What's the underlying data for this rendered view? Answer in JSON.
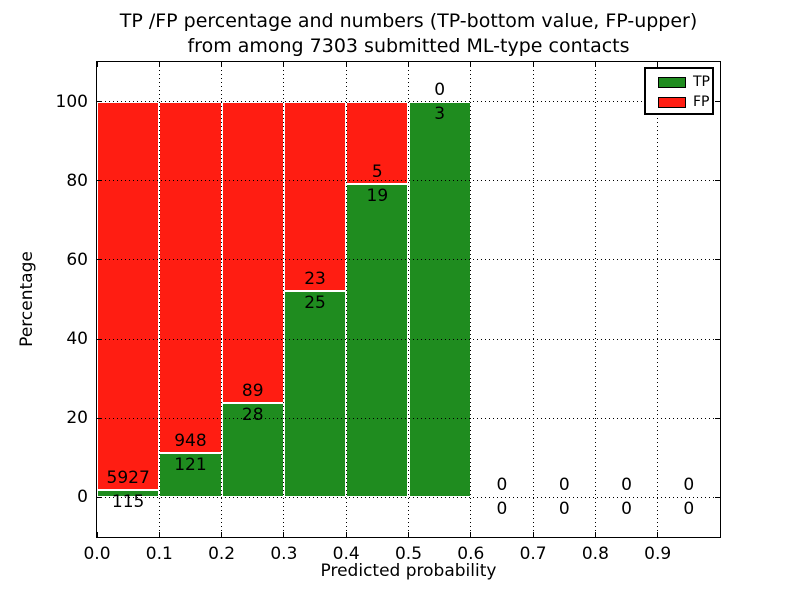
{
  "chart_data": {
    "type": "bar",
    "stacked": true,
    "title_line1": "TP /FP percentage and numbers (TP-bottom value, FP-upper)",
    "title_line2": "from among 7303 submitted ML-type contacts",
    "xlabel": "Predicted probability",
    "ylabel": "Percentage",
    "total_contacts": 7303,
    "annotation_rule": "FP count above TP/FP boundary, TP count below boundary",
    "bins": [
      {
        "x0": 0.0,
        "x1": 0.1,
        "tp": 115,
        "fp": 5927
      },
      {
        "x0": 0.1,
        "x1": 0.2,
        "tp": 121,
        "fp": 948
      },
      {
        "x0": 0.2,
        "x1": 0.3,
        "tp": 28,
        "fp": 89
      },
      {
        "x0": 0.3,
        "x1": 0.4,
        "tp": 25,
        "fp": 23
      },
      {
        "x0": 0.4,
        "x1": 0.5,
        "tp": 19,
        "fp": 5
      },
      {
        "x0": 0.5,
        "x1": 0.6,
        "tp": 3,
        "fp": 0
      },
      {
        "x0": 0.6,
        "x1": 0.7,
        "tp": 0,
        "fp": 0
      },
      {
        "x0": 0.7,
        "x1": 0.8,
        "tp": 0,
        "fp": 0
      },
      {
        "x0": 0.8,
        "x1": 0.9,
        "tp": 0,
        "fp": 0
      },
      {
        "x0": 0.9,
        "x1": 1.0,
        "tp": 0,
        "fp": 0
      }
    ],
    "series": [
      {
        "name": "TP",
        "color": "#1f8c1f"
      },
      {
        "name": "FP",
        "color": "#ff1d12"
      }
    ],
    "x_ticks": [
      "0.0",
      "0.1",
      "0.2",
      "0.3",
      "0.4",
      "0.5",
      "0.6",
      "0.7",
      "0.8",
      "0.9"
    ],
    "y_ticks": [
      "0",
      "20",
      "40",
      "60",
      "80",
      "100"
    ],
    "xlim": [
      0.0,
      1.0
    ],
    "ylim": [
      -10,
      110
    ],
    "grid": "dotted",
    "bar_edge_color": "#ffffff",
    "legend_position": "upper-right"
  }
}
